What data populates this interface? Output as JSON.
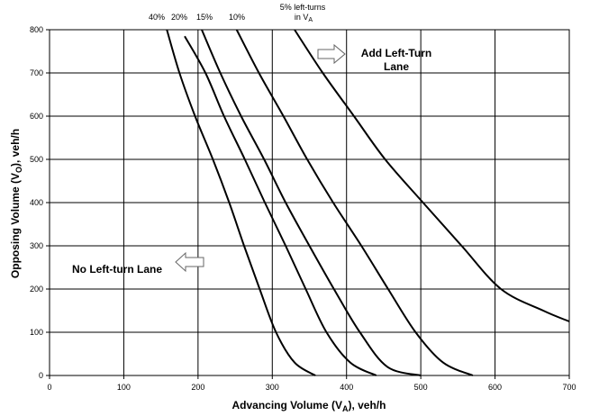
{
  "chart_data": {
    "type": "line",
    "xlabel_main": "Advancing Volume (V",
    "xlabel_sub": "A",
    "xlabel_tail": "), veh/h",
    "ylabel_main": "Opposing Volume (V",
    "ylabel_sub": "O",
    "ylabel_tail": "), veh/h",
    "xlim": [
      0,
      700
    ],
    "ylim": [
      0,
      800
    ],
    "x_ticks": [
      "0",
      "100",
      "200",
      "300",
      "400",
      "500",
      "600",
      "700"
    ],
    "y_ticks": [
      "0",
      "100",
      "200",
      "300",
      "400",
      "500",
      "600",
      "700",
      "800"
    ],
    "grid": true,
    "series_labels": {
      "s40": "40%",
      "s20": "20%",
      "s15": "15%",
      "s10": "10%",
      "s5_line1": "5% left-turns",
      "s5_line2_main": "in V",
      "s5_line2_sub": "A"
    },
    "series": [
      {
        "name": "40%",
        "points": [
          [
            158,
            800
          ],
          [
            175,
            700
          ],
          [
            196,
            600
          ],
          [
            220,
            500
          ],
          [
            242,
            400
          ],
          [
            262,
            300
          ],
          [
            283,
            200
          ],
          [
            305,
            100
          ],
          [
            330,
            30
          ],
          [
            358,
            0
          ]
        ]
      },
      {
        "name": "20%",
        "points": [
          [
            182,
            785
          ],
          [
            210,
            700
          ],
          [
            235,
            600
          ],
          [
            263,
            500
          ],
          [
            290,
            400
          ],
          [
            318,
            300
          ],
          [
            345,
            200
          ],
          [
            373,
            100
          ],
          [
            405,
            30
          ],
          [
            440,
            0
          ]
        ]
      },
      {
        "name": "15%",
        "points": [
          [
            205,
            800
          ],
          [
            230,
            700
          ],
          [
            258,
            600
          ],
          [
            289,
            500
          ],
          [
            318,
            400
          ],
          [
            350,
            300
          ],
          [
            383,
            200
          ],
          [
            418,
            100
          ],
          [
            455,
            20
          ],
          [
            500,
            0
          ]
        ]
      },
      {
        "name": "10%",
        "points": [
          [
            252,
            800
          ],
          [
            282,
            700
          ],
          [
            315,
            600
          ],
          [
            347,
            500
          ],
          [
            382,
            400
          ],
          [
            420,
            300
          ],
          [
            456,
            200
          ],
          [
            493,
            100
          ],
          [
            530,
            30
          ],
          [
            570,
            0
          ]
        ]
      },
      {
        "name": "5%",
        "points": [
          [
            330,
            800
          ],
          [
            368,
            700
          ],
          [
            410,
            600
          ],
          [
            452,
            500
          ],
          [
            503,
            400
          ],
          [
            555,
            300
          ],
          [
            608,
            200
          ],
          [
            665,
            150
          ],
          [
            700,
            125
          ]
        ]
      }
    ],
    "annotations": {
      "add_lane_line1": "Add Left-Turn",
      "add_lane_line2": "Lane",
      "no_lane": "No Left-turn Lane"
    }
  }
}
